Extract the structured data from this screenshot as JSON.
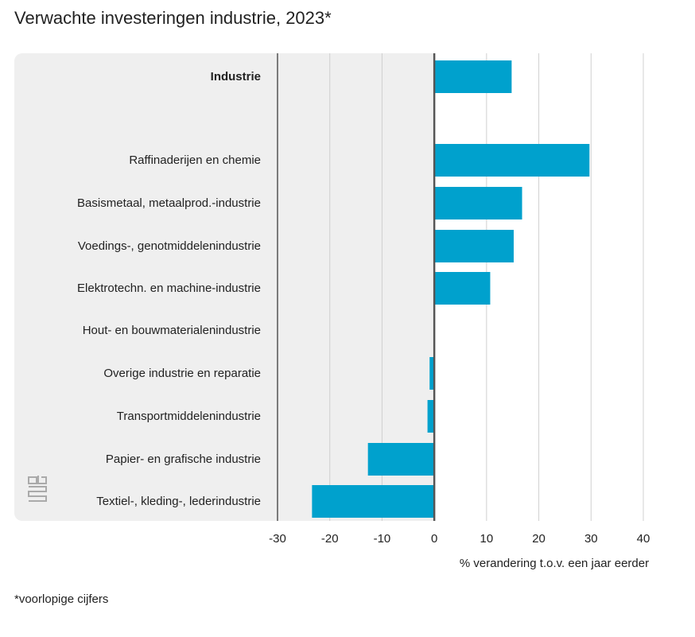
{
  "title": "Verwachte investeringen industrie, 2023*",
  "footnote": "*voorlopige cijfers",
  "chart_data": {
    "type": "bar",
    "orientation": "horizontal",
    "title": "Verwachte investeringen industrie, 2023*",
    "xlabel": "% verandering t.o.v. een jaar eerder",
    "ylabel": "",
    "categories": [
      "Industrie",
      "Raffinaderijen en chemie",
      "Basismetaal, metaalprod.-industrie",
      "Voedings-, genotmiddelenindustrie",
      "Elektrotechn. en machine-industrie",
      "Hout- en bouwmaterialenindustrie",
      "Overige industrie en reparatie",
      "Transportmiddelenindustrie",
      "Papier- en grafische industrie",
      "Textiel-, kleding-, lederindustrie"
    ],
    "values": [
      14.8,
      29.7,
      16.8,
      15.2,
      10.7,
      0,
      -0.9,
      -1.3,
      -12.7,
      -23.4
    ],
    "xlim": [
      -30,
      40
    ],
    "ticks": [
      "-30",
      "-20",
      "-10",
      "0",
      "10",
      "20",
      "30",
      "40"
    ],
    "grid": true,
    "bar_color": "#00a1cd"
  }
}
